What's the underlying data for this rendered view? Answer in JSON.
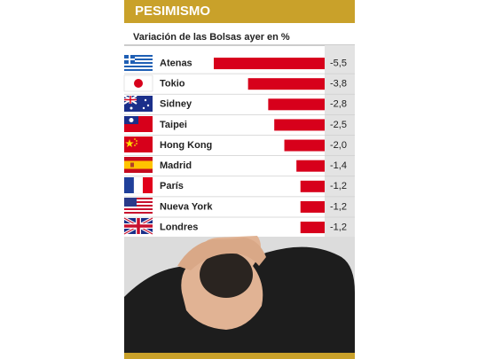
{
  "chart_data": {
    "type": "bar",
    "orientation": "horizontal",
    "title": "PESIMISMO",
    "subtitle": "Variación de las Bolsas ayer en %",
    "categories": [
      "Atenas",
      "Tokio",
      "Sidney",
      "Taipei",
      "Hong Kong",
      "Madrid",
      "París",
      "Nueva York",
      "Londres"
    ],
    "values": [
      -5.5,
      -3.8,
      -2.8,
      -2.5,
      -2.0,
      -1.4,
      -1.2,
      -1.2,
      -1.2
    ],
    "value_labels": [
      "-5,5",
      "-3,8",
      "-2,8",
      "-2,5",
      "-2,0",
      "-1,4",
      "-1,2",
      "-1,2",
      "-1,2"
    ],
    "color": "#d7001b"
  }
}
